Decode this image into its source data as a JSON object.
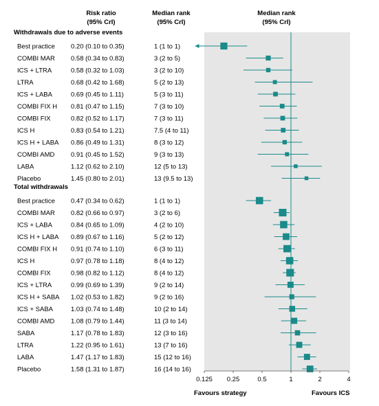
{
  "chart_data": {
    "type": "forest",
    "columns": {
      "rr_title": [
        "Risk ratio",
        "(95% CrI)"
      ],
      "rank_title": [
        "Median rank",
        "(95% CrI)"
      ],
      "plot_title": [
        "Median rank",
        "(95% CrI)"
      ]
    },
    "x_scale": "log2",
    "xlim": [
      0.125,
      4
    ],
    "x_ticks": [
      {
        "value": 0.125,
        "label": "0.125"
      },
      {
        "value": 0.25,
        "label": "0.25"
      },
      {
        "value": 0.5,
        "label": "0.5"
      },
      {
        "value": 1,
        "label": "1"
      },
      {
        "value": 2,
        "label": "2"
      },
      {
        "value": 4,
        "label": "4"
      }
    ],
    "reference_line": 1,
    "favours_left": "Favours strategy",
    "favours_right": "Favours ICS",
    "marker_color": "#1a8a8a",
    "panel_color": "#e6e6e6",
    "sections": [
      {
        "title": "Withdrawals due to adverse events",
        "rows": [
          {
            "label": "Best practice",
            "rr_text": "0.20 (0.10 to 0.35)",
            "rank_text": "1 (1 to 1)",
            "est": 0.2,
            "lo": 0.1,
            "hi": 0.35,
            "arrow_left": true,
            "weight": 0.9
          },
          {
            "label": "COMBI MAR",
            "rr_text": "0.58 (0.34 to 0.83)",
            "rank_text": "3 (2 to 5)",
            "est": 0.58,
            "lo": 0.34,
            "hi": 0.83,
            "weight": 0.55
          },
          {
            "label": "ICS + LTRA",
            "rr_text": "0.58 (0.32 to 1.03)",
            "rank_text": "3 (2 to 10)",
            "est": 0.58,
            "lo": 0.32,
            "hi": 1.03,
            "weight": 0.45
          },
          {
            "label": "LTRA",
            "rr_text": "0.68 (0.42 to 1.68)",
            "rank_text": "5 (2 to 13)",
            "est": 0.68,
            "lo": 0.42,
            "hi": 1.68,
            "weight": 0.4
          },
          {
            "label": "ICS + LABA",
            "rr_text": "0.69 (0.45 to 1.11)",
            "rank_text": "5 (3 to 11)",
            "est": 0.69,
            "lo": 0.45,
            "hi": 1.11,
            "weight": 0.5
          },
          {
            "label": "COMBI FIX H",
            "rr_text": "0.81 (0.47 to 1.15)",
            "rank_text": "7 (3 to 10)",
            "est": 0.81,
            "lo": 0.47,
            "hi": 1.15,
            "weight": 0.5
          },
          {
            "label": "COMBI FIX",
            "rr_text": "0.82 (0.52 to 1.17)",
            "rank_text": "7 (3 to 11)",
            "est": 0.82,
            "lo": 0.52,
            "hi": 1.17,
            "weight": 0.5
          },
          {
            "label": "ICS H",
            "rr_text": "0.83 (0.54 to 1.21)",
            "rank_text": "7.5 (4 to 11)",
            "est": 0.83,
            "lo": 0.54,
            "hi": 1.21,
            "weight": 0.5
          },
          {
            "label": "ICS H + LABA",
            "rr_text": "0.86 (0.49 to 1.31)",
            "rank_text": "8 (3 to 12)",
            "est": 0.86,
            "lo": 0.49,
            "hi": 1.31,
            "weight": 0.45
          },
          {
            "label": "COMBI AMD",
            "rr_text": "0.91 (0.45 to 1.52)",
            "rank_text": "9 (3 to 13)",
            "est": 0.91,
            "lo": 0.45,
            "hi": 1.52,
            "weight": 0.4
          },
          {
            "label": "LABA",
            "rr_text": "1.12 (0.62 to 2.10)",
            "rank_text": "12 (5 to 13)",
            "est": 1.12,
            "lo": 0.62,
            "hi": 2.1,
            "weight": 0.35
          },
          {
            "label": "Placebo",
            "rr_text": "1.45 (0.80 to 2.01)",
            "rank_text": "13 (9.5 to 13)",
            "est": 1.45,
            "lo": 0.8,
            "hi": 2.01,
            "weight": 0.35
          }
        ]
      },
      {
        "title": "Total withdrawals",
        "rows": [
          {
            "label": "Best practice",
            "rr_text": "0.47 (0.34 to 0.62)",
            "rank_text": "1 (1 to 1)",
            "est": 0.47,
            "lo": 0.34,
            "hi": 0.62,
            "weight": 0.95
          },
          {
            "label": "COMBI MAR",
            "rr_text": "0.82 (0.66 to 0.97)",
            "rank_text": "3 (2 to 6)",
            "est": 0.82,
            "lo": 0.66,
            "hi": 0.97,
            "weight": 1.0
          },
          {
            "label": "ICS + LABA",
            "rr_text": "0.84 (0.65 to 1.09)",
            "rank_text": "4 (2 to 10)",
            "est": 0.84,
            "lo": 0.65,
            "hi": 1.09,
            "weight": 0.95
          },
          {
            "label": "ICS H + LABA",
            "rr_text": "0.89 (0.67 to 1.16)",
            "rank_text": "5 (2 to 12)",
            "est": 0.89,
            "lo": 0.67,
            "hi": 1.16,
            "weight": 0.85
          },
          {
            "label": "COMBI FIX H",
            "rr_text": "0.91 (0.74 to 1.10)",
            "rank_text": "6 (3 to 11)",
            "est": 0.91,
            "lo": 0.74,
            "hi": 1.1,
            "weight": 0.95
          },
          {
            "label": "ICS H",
            "rr_text": "0.97 (0.78 to 1.18)",
            "rank_text": "8 (4 to 12)",
            "est": 0.97,
            "lo": 0.78,
            "hi": 1.18,
            "weight": 0.95
          },
          {
            "label": "COMBI FIX",
            "rr_text": "0.98 (0.82 to 1.12)",
            "rank_text": "8 (4 to 12)",
            "est": 0.98,
            "lo": 0.82,
            "hi": 1.12,
            "weight": 1.0
          },
          {
            "label": "ICS + LTRA",
            "rr_text": "0.99 (0.69 to 1.39)",
            "rank_text": "9 (2 to 14)",
            "est": 0.99,
            "lo": 0.69,
            "hi": 1.39,
            "weight": 0.75
          },
          {
            "label": "ICS H + SABA",
            "rr_text": "1.02 (0.53 to 1.82)",
            "rank_text": "9 (2 to 16)",
            "est": 1.02,
            "lo": 0.53,
            "hi": 1.82,
            "weight": 0.55
          },
          {
            "label": "ICS + SABA",
            "rr_text": "1.03 (0.74 to 1.48)",
            "rank_text": "10 (2 to 14)",
            "est": 1.03,
            "lo": 0.74,
            "hi": 1.48,
            "weight": 0.7
          },
          {
            "label": "COMBI AMD",
            "rr_text": "1.08 (0.79 to 1.44)",
            "rank_text": "11 (3 to 14)",
            "est": 1.08,
            "lo": 0.79,
            "hi": 1.44,
            "weight": 0.75
          },
          {
            "label": "SABA",
            "rr_text": "1.17 (0.78 to 1.83)",
            "rank_text": "12 (3 to 16)",
            "est": 1.17,
            "lo": 0.78,
            "hi": 1.83,
            "weight": 0.6
          },
          {
            "label": "LTRA",
            "rr_text": "1.22 (0.95 to 1.61)",
            "rank_text": "13 (7 to 16)",
            "est": 1.22,
            "lo": 0.95,
            "hi": 1.61,
            "weight": 0.75
          },
          {
            "label": "LABA",
            "rr_text": "1.47 (1.17 to 1.83)",
            "rank_text": "15 (12 to 16)",
            "est": 1.47,
            "lo": 1.17,
            "hi": 1.83,
            "weight": 0.75
          },
          {
            "label": "Placebo",
            "rr_text": "1.58 (1.31 to 1.87)",
            "rank_text": "16 (14 to 16)",
            "est": 1.58,
            "lo": 1.31,
            "hi": 1.87,
            "weight": 0.85
          }
        ]
      }
    ]
  }
}
